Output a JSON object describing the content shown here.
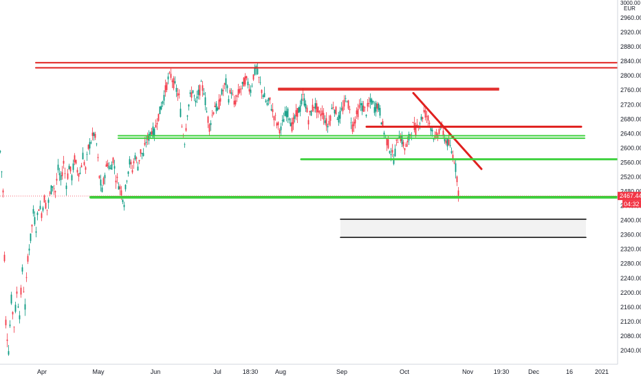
{
  "chart_data": {
    "type": "candlestick",
    "currency": "EUR",
    "y_top_label": "3000.00",
    "ylim": [
      2020,
      3000
    ],
    "y_ticks": [
      2040,
      2080,
      2120,
      2160,
      2200,
      2240,
      2280,
      2320,
      2360,
      2400,
      2440,
      2480,
      2520,
      2560,
      2600,
      2640,
      2680,
      2720,
      2760,
      2800,
      2840,
      2880,
      2920,
      2960
    ],
    "x_ticks": [
      {
        "label": "Apr",
        "pos": 61
      },
      {
        "label": "May",
        "pos": 143
      },
      {
        "label": "Jun",
        "pos": 226
      },
      {
        "label": "Jul",
        "pos": 316
      },
      {
        "label": "18:30",
        "pos": 364
      },
      {
        "label": "Aug",
        "pos": 408
      },
      {
        "label": "Sep",
        "pos": 497
      },
      {
        "label": "Oct",
        "pos": 588
      },
      {
        "label": "Nov",
        "pos": 680
      },
      {
        "label": "19:30",
        "pos": 729
      },
      {
        "label": "Dec",
        "pos": 776
      },
      {
        "label": "16",
        "pos": 828
      },
      {
        "label": "2021",
        "pos": 875
      }
    ],
    "last_price": {
      "value": 2467.44,
      "label": "2467.44",
      "countdown": "04:32",
      "color": "#f23645"
    },
    "price_path": [
      [
        0,
        2590
      ],
      [
        4,
        2480
      ],
      [
        8,
        2120
      ],
      [
        12,
        2040
      ],
      [
        16,
        2180
      ],
      [
        20,
        2110
      ],
      [
        24,
        2200
      ],
      [
        28,
        2140
      ],
      [
        32,
        2260
      ],
      [
        36,
        2160
      ],
      [
        40,
        2300
      ],
      [
        44,
        2350
      ],
      [
        48,
        2420
      ],
      [
        52,
        2380
      ],
      [
        56,
        2440
      ],
      [
        60,
        2420
      ],
      [
        64,
        2460
      ],
      [
        68,
        2430
      ],
      [
        72,
        2470
      ],
      [
        76,
        2500
      ],
      [
        80,
        2480
      ],
      [
        84,
        2540
      ],
      [
        88,
        2510
      ],
      [
        92,
        2560
      ],
      [
        96,
        2500
      ],
      [
        100,
        2550
      ],
      [
        104,
        2520
      ],
      [
        108,
        2570
      ],
      [
        112,
        2540
      ],
      [
        116,
        2530
      ],
      [
        120,
        2580
      ],
      [
        124,
        2540
      ],
      [
        128,
        2600
      ],
      [
        132,
        2620
      ],
      [
        136,
        2640
      ],
      [
        140,
        2610
      ],
      [
        144,
        2520
      ],
      [
        148,
        2480
      ],
      [
        152,
        2530
      ],
      [
        156,
        2560
      ],
      [
        160,
        2540
      ],
      [
        164,
        2570
      ],
      [
        168,
        2520
      ],
      [
        172,
        2500
      ],
      [
        176,
        2480
      ],
      [
        180,
        2450
      ],
      [
        184,
        2520
      ],
      [
        188,
        2560
      ],
      [
        192,
        2540
      ],
      [
        196,
        2580
      ],
      [
        200,
        2550
      ],
      [
        204,
        2590
      ],
      [
        208,
        2580
      ],
      [
        212,
        2620
      ],
      [
        216,
        2630
      ],
      [
        220,
        2650
      ],
      [
        224,
        2640
      ],
      [
        228,
        2680
      ],
      [
        232,
        2700
      ],
      [
        236,
        2730
      ],
      [
        240,
        2760
      ],
      [
        244,
        2790
      ],
      [
        248,
        2800
      ],
      [
        252,
        2780
      ],
      [
        256,
        2760
      ],
      [
        260,
        2740
      ],
      [
        264,
        2660
      ],
      [
        268,
        2620
      ],
      [
        272,
        2700
      ],
      [
        276,
        2740
      ],
      [
        280,
        2760
      ],
      [
        284,
        2720
      ],
      [
        288,
        2750
      ],
      [
        292,
        2770
      ],
      [
        296,
        2760
      ],
      [
        300,
        2700
      ],
      [
        304,
        2660
      ],
      [
        308,
        2690
      ],
      [
        312,
        2720
      ],
      [
        316,
        2700
      ],
      [
        320,
        2740
      ],
      [
        324,
        2760
      ],
      [
        328,
        2780
      ],
      [
        332,
        2740
      ],
      [
        336,
        2760
      ],
      [
        340,
        2720
      ],
      [
        344,
        2740
      ],
      [
        348,
        2760
      ],
      [
        352,
        2770
      ],
      [
        356,
        2790
      ],
      [
        360,
        2780
      ],
      [
        364,
        2760
      ],
      [
        368,
        2800
      ],
      [
        372,
        2820
      ],
      [
        376,
        2790
      ],
      [
        380,
        2760
      ],
      [
        384,
        2740
      ],
      [
        388,
        2720
      ],
      [
        392,
        2730
      ],
      [
        396,
        2700
      ],
      [
        400,
        2680
      ],
      [
        404,
        2660
      ],
      [
        408,
        2650
      ],
      [
        412,
        2680
      ],
      [
        416,
        2700
      ],
      [
        420,
        2690
      ],
      [
        424,
        2660
      ],
      [
        428,
        2680
      ],
      [
        432,
        2700
      ],
      [
        436,
        2710
      ],
      [
        440,
        2740
      ],
      [
        444,
        2720
      ],
      [
        448,
        2680
      ],
      [
        452,
        2700
      ],
      [
        456,
        2720
      ],
      [
        460,
        2710
      ],
      [
        464,
        2690
      ],
      [
        468,
        2700
      ],
      [
        472,
        2680
      ],
      [
        476,
        2660
      ],
      [
        480,
        2690
      ],
      [
        484,
        2720
      ],
      [
        488,
        2700
      ],
      [
        492,
        2680
      ],
      [
        496,
        2700
      ],
      [
        500,
        2720
      ],
      [
        504,
        2740
      ],
      [
        508,
        2700
      ],
      [
        512,
        2660
      ],
      [
        516,
        2680
      ],
      [
        520,
        2700
      ],
      [
        524,
        2720
      ],
      [
        528,
        2710
      ],
      [
        532,
        2700
      ],
      [
        536,
        2720
      ],
      [
        540,
        2730
      ],
      [
        544,
        2710
      ],
      [
        548,
        2720
      ],
      [
        552,
        2700
      ],
      [
        556,
        2660
      ],
      [
        560,
        2630
      ],
      [
        564,
        2610
      ],
      [
        568,
        2590
      ],
      [
        572,
        2570
      ],
      [
        576,
        2610
      ],
      [
        580,
        2640
      ],
      [
        584,
        2620
      ],
      [
        588,
        2600
      ],
      [
        592,
        2610
      ],
      [
        596,
        2640
      ],
      [
        600,
        2660
      ],
      [
        604,
        2650
      ],
      [
        608,
        2670
      ],
      [
        612,
        2680
      ],
      [
        616,
        2700
      ],
      [
        620,
        2690
      ],
      [
        624,
        2670
      ],
      [
        628,
        2650
      ],
      [
        632,
        2620
      ],
      [
        636,
        2640
      ],
      [
        640,
        2660
      ],
      [
        644,
        2640
      ],
      [
        648,
        2620
      ],
      [
        652,
        2610
      ],
      [
        656,
        2590
      ],
      [
        660,
        2570
      ],
      [
        664,
        2520
      ],
      [
        666,
        2480
      ],
      [
        668,
        2467
      ]
    ],
    "annotations": {
      "lines": [
        {
          "x1": 52,
          "y1": 2836,
          "x2": 898,
          "y2": 2836,
          "color": "#e0201f",
          "width": 2
        },
        {
          "x1": 52,
          "y1": 2822,
          "x2": 898,
          "y2": 2822,
          "color": "#e0201f",
          "width": 2
        },
        {
          "x1": 405,
          "y1": 2765,
          "x2": 725,
          "y2": 2765,
          "color": "#e0201f",
          "width": 2
        },
        {
          "x1": 405,
          "y1": 2761,
          "x2": 725,
          "y2": 2761,
          "color": "#e0201f",
          "width": 2
        },
        {
          "x1": 533,
          "y1": 2659,
          "x2": 845,
          "y2": 2659,
          "color": "#e0201f",
          "width": 3
        },
        {
          "x1": 601,
          "y1": 2752,
          "x2": 700,
          "y2": 2542,
          "color": "#e0201f",
          "width": 3
        },
        {
          "x1": 172,
          "y1": 2634,
          "x2": 850,
          "y2": 2634,
          "color": "#3ed13e",
          "width": 2
        },
        {
          "x1": 172,
          "y1": 2627,
          "x2": 850,
          "y2": 2627,
          "color": "#3ed13e",
          "width": 2
        },
        {
          "x1": 438,
          "y1": 2569,
          "x2": 898,
          "y2": 2569,
          "color": "#3ed13e",
          "width": 3
        },
        {
          "x1": 132,
          "y1": 2464,
          "x2": 898,
          "y2": 2464,
          "color": "#3ed13e",
          "width": 4
        },
        {
          "x1": 495,
          "y1": 2403,
          "x2": 852,
          "y2": 2403,
          "color": "#000000",
          "width": 1.5
        },
        {
          "x1": 495,
          "y1": 2353,
          "x2": 852,
          "y2": 2353,
          "color": "#000000",
          "width": 1.5
        }
      ],
      "box": {
        "x1": 495,
        "y1": 2403,
        "x2": 852,
        "y2": 2353,
        "fill": "#f2f2f2"
      }
    }
  }
}
